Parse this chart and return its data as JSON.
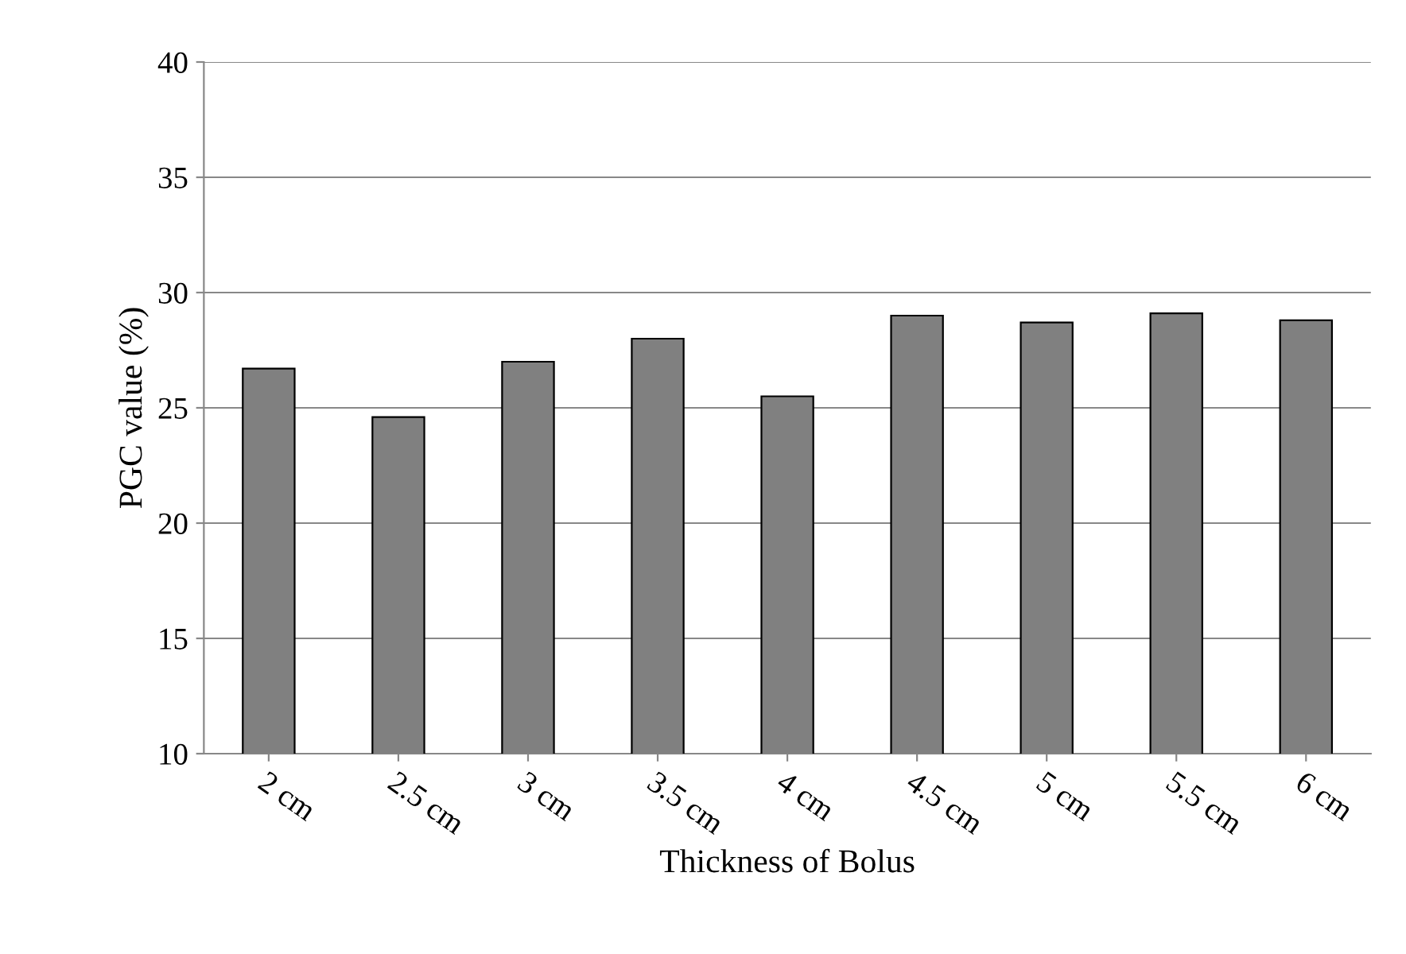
{
  "chart_data": {
    "type": "bar",
    "xlabel": "Thickness of Bolus",
    "ylabel": "PGC value (%)",
    "categories": [
      "2 cm",
      "2.5 cm",
      "3 cm",
      "3.5 cm",
      "4 cm",
      "4.5 cm",
      "5 cm",
      "5.5 cm",
      "6 cm"
    ],
    "values": [
      26.7,
      24.6,
      27.0,
      28.0,
      25.5,
      29.0,
      28.7,
      29.1,
      28.8
    ],
    "color": "#808080",
    "ylim": [
      10,
      40
    ],
    "yticks": [
      10,
      15,
      20,
      25,
      30,
      35,
      40
    ],
    "grid": "y"
  }
}
